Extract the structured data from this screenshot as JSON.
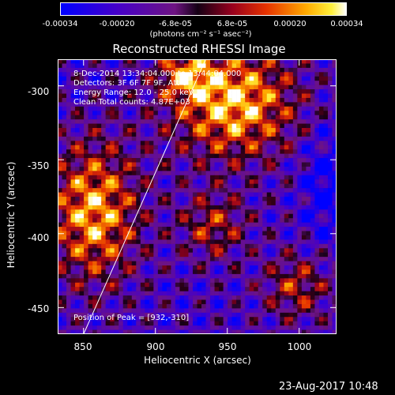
{
  "colorbar": {
    "ticks": [
      "-0.00034",
      "-0.00020",
      "-6.8e-05",
      "6.8e-05",
      "0.00020",
      "0.00034"
    ],
    "unit_label": "(photons cm⁻² s⁻¹ asec⁻²)"
  },
  "plot": {
    "title": "Reconstructed RHESSI Image",
    "info_lines": [
      "8-Dec-2014 13:34:04.000 to 13:44:04.000",
      "Detectors: 3F 6F 7F 9F, Att 0",
      "Energy Range: 12.0 - 25.0 keV",
      "Clean     Total counts: 4.87E+03"
    ],
    "peak_label": "Position of Peak = [932,-310]",
    "xlabel": "Heliocentric X (arcsec)",
    "ylabel": "Heliocentric Y (arcsec)"
  },
  "footer": {
    "timestamp": "23-Aug-2017 10:48"
  },
  "chart_data": {
    "type": "heatmap",
    "title": "Reconstructed RHESSI Image",
    "xlabel": "Heliocentric X (arcsec)",
    "ylabel": "Heliocentric Y (arcsec)",
    "xlim": [
      832,
      1026
    ],
    "ylim": [
      -468,
      -282
    ],
    "x_ticks": [
      850,
      900,
      950,
      1000
    ],
    "y_ticks": [
      -300,
      -350,
      -400,
      -450
    ],
    "colorbar_range": [
      -0.00034,
      0.00034
    ],
    "colorbar_ticks": [
      -0.00034,
      -0.0002,
      -6.8e-05,
      6.8e-05,
      0.0002,
      0.00034
    ],
    "colormap": "blue-purple-red-orange-yellow-white",
    "peak_position": [
      932,
      -310
    ],
    "limb_line": [
      [
        850,
        -468
      ],
      [
        935,
        -282
      ]
    ]
  }
}
